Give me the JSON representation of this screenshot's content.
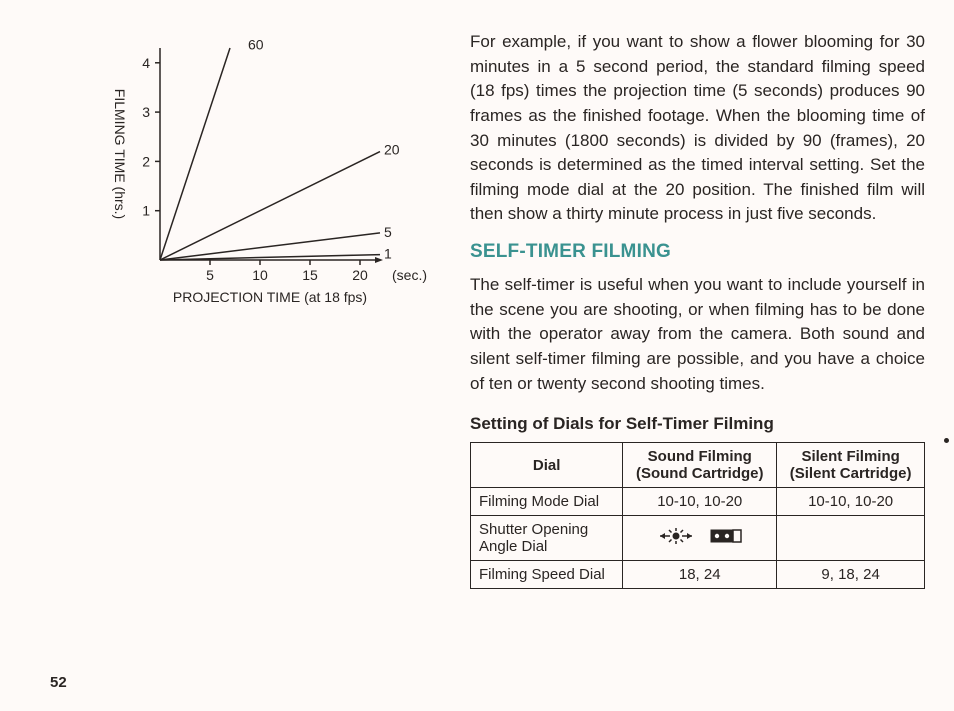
{
  "chart": {
    "type": "line",
    "xlabel": "PROJECTION TIME (at 18 fps)",
    "ylabel": "FILMING TIME (hrs.)",
    "x_unit": "(sec.)",
    "xlim": [
      0,
      22
    ],
    "ylim": [
      0,
      4.3
    ],
    "xtick_labels": [
      "5",
      "10",
      "15",
      "20"
    ],
    "xtick_positions": [
      5,
      10,
      15,
      20
    ],
    "ytick_labels": [
      "1",
      "2",
      "3",
      "4"
    ],
    "ytick_positions": [
      1,
      2,
      3,
      4
    ],
    "label_fontsize": 14,
    "tick_fontsize": 14,
    "line_color": "#2a2523",
    "line_width": 1.5,
    "background_color": "#fefaf8",
    "series": [
      {
        "name": "60",
        "points": [
          [
            0,
            0
          ],
          [
            7,
            4.3
          ]
        ],
        "end_label": "60",
        "label_pos": [
          8.8,
          4.35
        ]
      },
      {
        "name": "20",
        "points": [
          [
            0,
            0
          ],
          [
            22,
            2.2
          ]
        ],
        "end_label": "20",
        "label_pos": [
          22.4,
          2.22
        ]
      },
      {
        "name": "5",
        "points": [
          [
            0,
            0
          ],
          [
            22,
            0.55
          ]
        ],
        "end_label": "5",
        "label_pos": [
          22.4,
          0.55
        ]
      },
      {
        "name": "1",
        "points": [
          [
            0,
            0
          ],
          [
            22,
            0.11
          ]
        ],
        "end_label": "1",
        "label_pos": [
          22.4,
          0.11
        ]
      }
    ]
  },
  "body": {
    "para1": "For example, if you want to show a flower blooming for 30 minutes in a 5 second period, the standard filming speed (18 fps) times the projection time (5 seconds) produces 90 frames as the finished footage. When the blooming time of 30 minutes (1800 seconds) is divided by 90 (frames), 20 seconds is determined as the timed interval setting. Set the filming mode dial at the 20 position. The finished film will then show a thirty minute process in just five seconds.",
    "heading": "SELF-TIMER FILMING",
    "para2": "The self-timer is useful when you want to include yourself in the scene you are shooting, or when filming has to be done with the operator away from the camera. Both sound and silent self-timer filming are possible, and you have a choice of ten or twenty second shooting times.",
    "sub_heading": "Setting of Dials for Self-Timer Filming"
  },
  "table": {
    "columns": [
      "Dial",
      "Sound Filming\n(Sound Cartridge)",
      "Silent Filming\n(Silent Cartridge)"
    ],
    "rows": [
      {
        "label": "Filming Mode Dial",
        "sound": "10-10, 10-20",
        "silent": "10-10, 10-20",
        "icons": false
      },
      {
        "label": "Shutter Opening\nAngle Dial",
        "sound": "",
        "silent": "",
        "icons": true
      },
      {
        "label": "Filming Speed Dial",
        "sound": "18, 24",
        "silent": "9, 18, 24",
        "icons": false
      }
    ]
  },
  "icons": {
    "sun_color": "#2a2523",
    "cart_color": "#2a2523"
  },
  "page_number": "52"
}
